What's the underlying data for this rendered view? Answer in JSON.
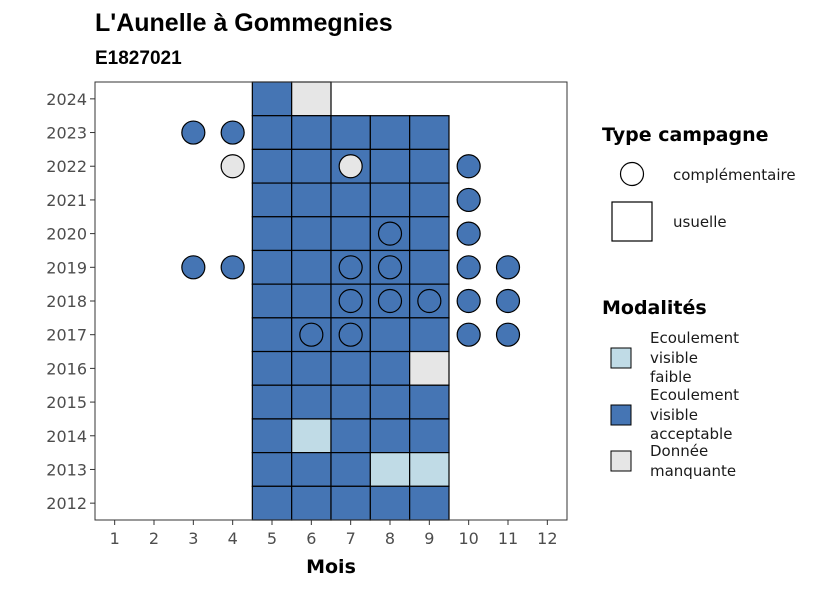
{
  "chart_data": {
    "type": "heatmap",
    "title": "L'Aunelle à Gommegnies",
    "subtitle": "E1827021",
    "xlabel": "Mois",
    "ylabel": "",
    "x_ticks": [
      "1",
      "2",
      "3",
      "4",
      "5",
      "6",
      "7",
      "8",
      "9",
      "10",
      "11",
      "12"
    ],
    "y_ticks": [
      "2012",
      "2013",
      "2014",
      "2015",
      "2016",
      "2017",
      "2018",
      "2019",
      "2020",
      "2021",
      "2022",
      "2023",
      "2024"
    ],
    "xlim": [
      0.5,
      12.5
    ],
    "ylim": [
      2011.5,
      2024.5
    ],
    "grid": false,
    "colors": {
      "Ecoulement visible faible": "#c0dbe6",
      "Ecoulement visible acceptable": "#4575b4",
      "Donnée manquante": "#e6e6e6"
    },
    "observations": [
      {
        "year": 2024,
        "month": 5,
        "modalite": "Ecoulement visible acceptable",
        "campagne": "usuelle"
      },
      {
        "year": 2024,
        "month": 6,
        "modalite": "Donnée manquante",
        "campagne": "usuelle"
      },
      {
        "year": 2023,
        "month": 3,
        "modalite": "Ecoulement visible acceptable",
        "campagne": "complémentaire"
      },
      {
        "year": 2023,
        "month": 4,
        "modalite": "Ecoulement visible acceptable",
        "campagne": "complémentaire"
      },
      {
        "year": 2023,
        "month": 5,
        "modalite": "Ecoulement visible acceptable",
        "campagne": "usuelle"
      },
      {
        "year": 2023,
        "month": 6,
        "modalite": "Ecoulement visible acceptable",
        "campagne": "usuelle"
      },
      {
        "year": 2023,
        "month": 7,
        "modalite": "Ecoulement visible acceptable",
        "campagne": "usuelle"
      },
      {
        "year": 2023,
        "month": 8,
        "modalite": "Ecoulement visible acceptable",
        "campagne": "usuelle"
      },
      {
        "year": 2023,
        "month": 9,
        "modalite": "Ecoulement visible acceptable",
        "campagne": "usuelle"
      },
      {
        "year": 2022,
        "month": 4,
        "modalite": "Donnée manquante",
        "campagne": "complémentaire"
      },
      {
        "year": 2022,
        "month": 5,
        "modalite": "Ecoulement visible acceptable",
        "campagne": "usuelle"
      },
      {
        "year": 2022,
        "month": 6,
        "modalite": "Ecoulement visible acceptable",
        "campagne": "usuelle"
      },
      {
        "year": 2022,
        "month": 7,
        "modalite": "Ecoulement visible acceptable",
        "campagne": "usuelle"
      },
      {
        "year": 2022,
        "month": 7,
        "modalite": "Donnée manquante",
        "campagne": "complémentaire"
      },
      {
        "year": 2022,
        "month": 8,
        "modalite": "Ecoulement visible acceptable",
        "campagne": "usuelle"
      },
      {
        "year": 2022,
        "month": 9,
        "modalite": "Ecoulement visible acceptable",
        "campagne": "usuelle"
      },
      {
        "year": 2022,
        "month": 10,
        "modalite": "Ecoulement visible acceptable",
        "campagne": "complémentaire"
      },
      {
        "year": 2021,
        "month": 5,
        "modalite": "Ecoulement visible acceptable",
        "campagne": "usuelle"
      },
      {
        "year": 2021,
        "month": 6,
        "modalite": "Ecoulement visible acceptable",
        "campagne": "usuelle"
      },
      {
        "year": 2021,
        "month": 7,
        "modalite": "Ecoulement visible acceptable",
        "campagne": "usuelle"
      },
      {
        "year": 2021,
        "month": 8,
        "modalite": "Ecoulement visible acceptable",
        "campagne": "usuelle"
      },
      {
        "year": 2021,
        "month": 9,
        "modalite": "Ecoulement visible acceptable",
        "campagne": "usuelle"
      },
      {
        "year": 2021,
        "month": 10,
        "modalite": "Ecoulement visible acceptable",
        "campagne": "complémentaire"
      },
      {
        "year": 2020,
        "month": 5,
        "modalite": "Ecoulement visible acceptable",
        "campagne": "usuelle"
      },
      {
        "year": 2020,
        "month": 6,
        "modalite": "Ecoulement visible acceptable",
        "campagne": "usuelle"
      },
      {
        "year": 2020,
        "month": 7,
        "modalite": "Ecoulement visible acceptable",
        "campagne": "usuelle"
      },
      {
        "year": 2020,
        "month": 8,
        "modalite": "Ecoulement visible acceptable",
        "campagne": "usuelle"
      },
      {
        "year": 2020,
        "month": 8,
        "modalite": "Ecoulement visible acceptable",
        "campagne": "complémentaire"
      },
      {
        "year": 2020,
        "month": 9,
        "modalite": "Ecoulement visible acceptable",
        "campagne": "usuelle"
      },
      {
        "year": 2020,
        "month": 10,
        "modalite": "Ecoulement visible acceptable",
        "campagne": "complémentaire"
      },
      {
        "year": 2019,
        "month": 3,
        "modalite": "Ecoulement visible acceptable",
        "campagne": "complémentaire"
      },
      {
        "year": 2019,
        "month": 4,
        "modalite": "Ecoulement visible acceptable",
        "campagne": "complémentaire"
      },
      {
        "year": 2019,
        "month": 5,
        "modalite": "Ecoulement visible acceptable",
        "campagne": "usuelle"
      },
      {
        "year": 2019,
        "month": 6,
        "modalite": "Ecoulement visible acceptable",
        "campagne": "usuelle"
      },
      {
        "year": 2019,
        "month": 7,
        "modalite": "Ecoulement visible acceptable",
        "campagne": "usuelle"
      },
      {
        "year": 2019,
        "month": 7,
        "modalite": "Ecoulement visible acceptable",
        "campagne": "complémentaire"
      },
      {
        "year": 2019,
        "month": 8,
        "modalite": "Ecoulement visible acceptable",
        "campagne": "usuelle"
      },
      {
        "year": 2019,
        "month": 8,
        "modalite": "Ecoulement visible acceptable",
        "campagne": "complémentaire"
      },
      {
        "year": 2019,
        "month": 9,
        "modalite": "Ecoulement visible acceptable",
        "campagne": "usuelle"
      },
      {
        "year": 2019,
        "month": 10,
        "modalite": "Ecoulement visible acceptable",
        "campagne": "complémentaire"
      },
      {
        "year": 2019,
        "month": 11,
        "modalite": "Ecoulement visible acceptable",
        "campagne": "complémentaire"
      },
      {
        "year": 2018,
        "month": 5,
        "modalite": "Ecoulement visible acceptable",
        "campagne": "usuelle"
      },
      {
        "year": 2018,
        "month": 6,
        "modalite": "Ecoulement visible acceptable",
        "campagne": "usuelle"
      },
      {
        "year": 2018,
        "month": 7,
        "modalite": "Ecoulement visible acceptable",
        "campagne": "usuelle"
      },
      {
        "year": 2018,
        "month": 7,
        "modalite": "Ecoulement visible acceptable",
        "campagne": "complémentaire"
      },
      {
        "year": 2018,
        "month": 8,
        "modalite": "Ecoulement visible acceptable",
        "campagne": "usuelle"
      },
      {
        "year": 2018,
        "month": 8,
        "modalite": "Ecoulement visible acceptable",
        "campagne": "complémentaire"
      },
      {
        "year": 2018,
        "month": 9,
        "modalite": "Ecoulement visible acceptable",
        "campagne": "usuelle"
      },
      {
        "year": 2018,
        "month": 9,
        "modalite": "Ecoulement visible acceptable",
        "campagne": "complémentaire"
      },
      {
        "year": 2018,
        "month": 10,
        "modalite": "Ecoulement visible acceptable",
        "campagne": "complémentaire"
      },
      {
        "year": 2018,
        "month": 11,
        "modalite": "Ecoulement visible acceptable",
        "campagne": "complémentaire"
      },
      {
        "year": 2017,
        "month": 5,
        "modalite": "Ecoulement visible acceptable",
        "campagne": "usuelle"
      },
      {
        "year": 2017,
        "month": 6,
        "modalite": "Ecoulement visible acceptable",
        "campagne": "usuelle"
      },
      {
        "year": 2017,
        "month": 6,
        "modalite": "Ecoulement visible acceptable",
        "campagne": "complémentaire"
      },
      {
        "year": 2017,
        "month": 7,
        "modalite": "Ecoulement visible acceptable",
        "campagne": "usuelle"
      },
      {
        "year": 2017,
        "month": 7,
        "modalite": "Ecoulement visible acceptable",
        "campagne": "complémentaire"
      },
      {
        "year": 2017,
        "month": 8,
        "modalite": "Ecoulement visible acceptable",
        "campagne": "usuelle"
      },
      {
        "year": 2017,
        "month": 9,
        "modalite": "Ecoulement visible acceptable",
        "campagne": "usuelle"
      },
      {
        "year": 2017,
        "month": 10,
        "modalite": "Ecoulement visible acceptable",
        "campagne": "complémentaire"
      },
      {
        "year": 2017,
        "month": 11,
        "modalite": "Ecoulement visible acceptable",
        "campagne": "complémentaire"
      },
      {
        "year": 2016,
        "month": 5,
        "modalite": "Ecoulement visible acceptable",
        "campagne": "usuelle"
      },
      {
        "year": 2016,
        "month": 6,
        "modalite": "Ecoulement visible acceptable",
        "campagne": "usuelle"
      },
      {
        "year": 2016,
        "month": 7,
        "modalite": "Ecoulement visible acceptable",
        "campagne": "usuelle"
      },
      {
        "year": 2016,
        "month": 8,
        "modalite": "Ecoulement visible acceptable",
        "campagne": "usuelle"
      },
      {
        "year": 2016,
        "month": 9,
        "modalite": "Donnée manquante",
        "campagne": "usuelle"
      },
      {
        "year": 2015,
        "month": 5,
        "modalite": "Ecoulement visible acceptable",
        "campagne": "usuelle"
      },
      {
        "year": 2015,
        "month": 6,
        "modalite": "Ecoulement visible acceptable",
        "campagne": "usuelle"
      },
      {
        "year": 2015,
        "month": 7,
        "modalite": "Ecoulement visible acceptable",
        "campagne": "usuelle"
      },
      {
        "year": 2015,
        "month": 8,
        "modalite": "Ecoulement visible acceptable",
        "campagne": "usuelle"
      },
      {
        "year": 2015,
        "month": 9,
        "modalite": "Ecoulement visible acceptable",
        "campagne": "usuelle"
      },
      {
        "year": 2014,
        "month": 5,
        "modalite": "Ecoulement visible acceptable",
        "campagne": "usuelle"
      },
      {
        "year": 2014,
        "month": 6,
        "modalite": "Ecoulement visible faible",
        "campagne": "usuelle"
      },
      {
        "year": 2014,
        "month": 7,
        "modalite": "Ecoulement visible acceptable",
        "campagne": "usuelle"
      },
      {
        "year": 2014,
        "month": 8,
        "modalite": "Ecoulement visible acceptable",
        "campagne": "usuelle"
      },
      {
        "year": 2014,
        "month": 9,
        "modalite": "Ecoulement visible acceptable",
        "campagne": "usuelle"
      },
      {
        "year": 2013,
        "month": 5,
        "modalite": "Ecoulement visible acceptable",
        "campagne": "usuelle"
      },
      {
        "year": 2013,
        "month": 6,
        "modalite": "Ecoulement visible acceptable",
        "campagne": "usuelle"
      },
      {
        "year": 2013,
        "month": 7,
        "modalite": "Ecoulement visible acceptable",
        "campagne": "usuelle"
      },
      {
        "year": 2013,
        "month": 8,
        "modalite": "Ecoulement visible faible",
        "campagne": "usuelle"
      },
      {
        "year": 2013,
        "month": 9,
        "modalite": "Ecoulement visible faible",
        "campagne": "usuelle"
      },
      {
        "year": 2012,
        "month": 5,
        "modalite": "Ecoulement visible acceptable",
        "campagne": "usuelle"
      },
      {
        "year": 2012,
        "month": 6,
        "modalite": "Ecoulement visible acceptable",
        "campagne": "usuelle"
      },
      {
        "year": 2012,
        "month": 7,
        "modalite": "Ecoulement visible acceptable",
        "campagne": "usuelle"
      },
      {
        "year": 2012,
        "month": 8,
        "modalite": "Ecoulement visible acceptable",
        "campagne": "usuelle"
      },
      {
        "year": 2012,
        "month": 9,
        "modalite": "Ecoulement visible acceptable",
        "campagne": "usuelle"
      }
    ],
    "legend": {
      "placement": "right",
      "type_campagne": {
        "title": "Type campagne",
        "items": [
          {
            "label": "complémentaire",
            "shape": "circle"
          },
          {
            "label": "usuelle",
            "shape": "square"
          }
        ]
      },
      "modalites": {
        "title": "Modalités",
        "items": [
          {
            "lines": [
              "Ecoulement",
              "visible",
              "faible"
            ],
            "color": "#c0dbe6"
          },
          {
            "lines": [
              "Ecoulement",
              "visible",
              "acceptable"
            ],
            "color": "#4575b4"
          },
          {
            "lines": [
              "Donnée",
              "manquante"
            ],
            "color": "#e6e6e6"
          }
        ]
      }
    }
  }
}
